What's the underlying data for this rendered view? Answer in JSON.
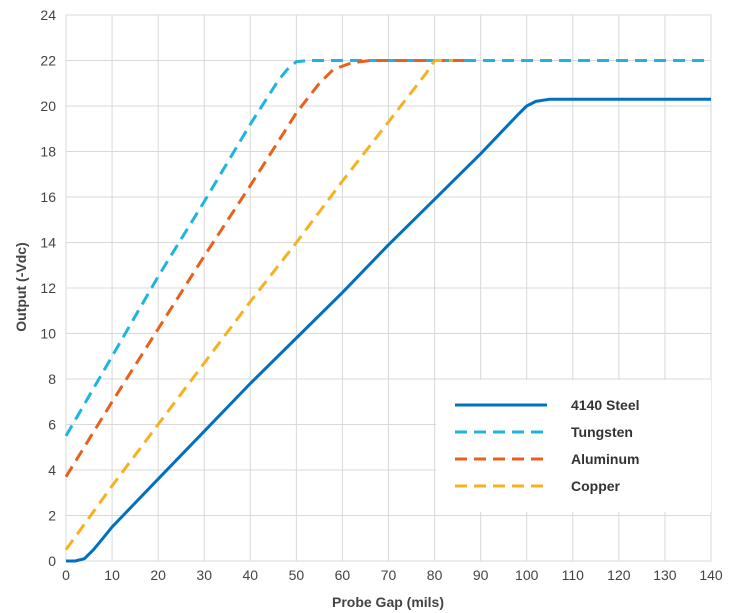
{
  "chart_data": {
    "type": "line",
    "title": "",
    "xlabel": "Probe Gap (mils)",
    "ylabel": "Output (-Vdc)",
    "xlim": [
      0,
      140
    ],
    "ylim": [
      0,
      24
    ],
    "x_ticks": [
      0,
      10,
      20,
      30,
      40,
      50,
      60,
      70,
      80,
      90,
      100,
      110,
      120,
      130,
      140
    ],
    "y_ticks": [
      0,
      2,
      4,
      6,
      8,
      10,
      12,
      14,
      16,
      18,
      20,
      22,
      24
    ],
    "grid": true,
    "legend_position": "bottom-right",
    "series": [
      {
        "name": "4140 Steel",
        "color": "#0070c0",
        "dash": "solid",
        "points": [
          [
            0,
            0
          ],
          [
            2,
            0
          ],
          [
            4,
            0.1
          ],
          [
            6,
            0.5
          ],
          [
            8,
            1.0
          ],
          [
            10,
            1.5
          ],
          [
            20,
            3.6
          ],
          [
            30,
            5.7
          ],
          [
            40,
            7.8
          ],
          [
            50,
            9.8
          ],
          [
            60,
            11.8
          ],
          [
            70,
            13.9
          ],
          [
            80,
            15.9
          ],
          [
            90,
            17.9
          ],
          [
            98,
            19.6
          ],
          [
            100,
            20.0
          ],
          [
            102,
            20.2
          ],
          [
            105,
            20.3
          ],
          [
            110,
            20.3
          ],
          [
            120,
            20.3
          ],
          [
            130,
            20.3
          ],
          [
            140,
            20.3
          ]
        ]
      },
      {
        "name": "Tungsten",
        "color": "#1fb3e0",
        "dash": "dashed",
        "points": [
          [
            0,
            5.5
          ],
          [
            10,
            9.0
          ],
          [
            20,
            12.5
          ],
          [
            30,
            15.8
          ],
          [
            40,
            19.2
          ],
          [
            46,
            21.1
          ],
          [
            48,
            21.6
          ],
          [
            50,
            21.95
          ],
          [
            53,
            22.0
          ],
          [
            60,
            22.0
          ],
          [
            80,
            22.0
          ],
          [
            100,
            22.0
          ],
          [
            120,
            22.0
          ],
          [
            140,
            22.0
          ]
        ]
      },
      {
        "name": "Aluminum",
        "color": "#e8601c",
        "dash": "dashed",
        "points": [
          [
            0,
            3.7
          ],
          [
            10,
            7.0
          ],
          [
            20,
            10.2
          ],
          [
            30,
            13.4
          ],
          [
            40,
            16.5
          ],
          [
            50,
            19.7
          ],
          [
            55,
            21.0
          ],
          [
            58,
            21.6
          ],
          [
            62,
            21.9
          ],
          [
            66,
            22.0
          ],
          [
            70,
            22.0
          ],
          [
            88,
            22.0
          ]
        ]
      },
      {
        "name": "Copper",
        "color": "#f4b223",
        "dash": "dashed",
        "points": [
          [
            0,
            0.5
          ],
          [
            10,
            3.3
          ],
          [
            20,
            6.0
          ],
          [
            30,
            8.7
          ],
          [
            40,
            11.4
          ],
          [
            50,
            14.0
          ],
          [
            60,
            16.7
          ],
          [
            70,
            19.3
          ],
          [
            78,
            21.4
          ],
          [
            80,
            22.0
          ],
          [
            84,
            22.0
          ]
        ]
      }
    ]
  }
}
